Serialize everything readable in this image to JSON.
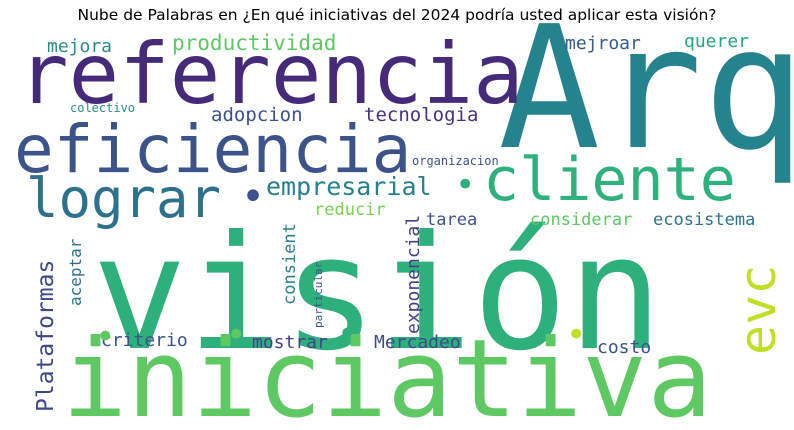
{
  "chart_data": {
    "type": "wordcloud",
    "title": "Nube de Palabras en ¿En qué iniciativas del 2024 podría usted aplicar esta visión?",
    "words": [
      {
        "text": "visión",
        "color": "#2eb07c",
        "orientation": "horizontal"
      },
      {
        "text": "Arq",
        "color": "#25838e",
        "orientation": "horizontal"
      },
      {
        "text": "iniciativa",
        "color": "#5ec962",
        "orientation": "horizontal"
      },
      {
        "text": "referencia",
        "color": "#462a7a",
        "orientation": "horizontal"
      },
      {
        "text": "eficiencia",
        "color": "#3b528b",
        "orientation": "horizontal"
      },
      {
        "text": "cliente",
        "color": "#2db27d",
        "orientation": "horizontal"
      },
      {
        "text": "lograr",
        "color": "#2c728e",
        "orientation": "horizontal"
      },
      {
        "text": "evc",
        "color": "#c0df25",
        "orientation": "vertical"
      },
      {
        "text": "empresarial",
        "color": "#27808e",
        "orientation": "horizontal"
      },
      {
        "text": "Plataformas",
        "color": "#3f4788",
        "orientation": "vertical"
      },
      {
        "text": "productividad",
        "color": "#5ec962",
        "orientation": "horizontal"
      },
      {
        "text": "tecnologia",
        "color": "#46337f",
        "orientation": "horizontal"
      },
      {
        "text": "adopcion",
        "color": "#3b528b",
        "orientation": "horizontal"
      },
      {
        "text": "mejora",
        "color": "#2c8c8c",
        "orientation": "horizontal"
      },
      {
        "text": "mejroar",
        "color": "#365c8d",
        "orientation": "horizontal"
      },
      {
        "text": "querer",
        "color": "#22a884",
        "orientation": "horizontal"
      },
      {
        "text": "reducir",
        "color": "#7ad151",
        "orientation": "horizontal"
      },
      {
        "text": "tarea",
        "color": "#3b528b",
        "orientation": "horizontal"
      },
      {
        "text": "considerar",
        "color": "#5ec962",
        "orientation": "horizontal"
      },
      {
        "text": "ecosistema",
        "color": "#2c728e",
        "orientation": "horizontal"
      },
      {
        "text": "exponencial",
        "color": "#433e85",
        "orientation": "vertical"
      },
      {
        "text": "consient",
        "color": "#27808e",
        "orientation": "vertical"
      },
      {
        "text": "aceptar",
        "color": "#2c728e",
        "orientation": "vertical"
      },
      {
        "text": "criterio",
        "color": "#3b528b",
        "orientation": "horizontal"
      },
      {
        "text": "mostrar",
        "color": "#414487",
        "orientation": "horizontal"
      },
      {
        "text": "Mercadeo",
        "color": "#3e4a89",
        "orientation": "horizontal"
      },
      {
        "text": "costo",
        "color": "#3b528b",
        "orientation": "horizontal"
      },
      {
        "text": "particular",
        "color": "#3b528b",
        "orientation": "vertical"
      },
      {
        "text": "colectivo",
        "color": "#2c8c8c",
        "orientation": "horizontal"
      },
      {
        "text": "organizacion",
        "color": "#3b528b",
        "orientation": "horizontal"
      },
      {
        "text": "•",
        "color": "#5ec962",
        "orientation": "horizontal"
      },
      {
        "text": "•",
        "color": "#5ec962",
        "orientation": "horizontal"
      },
      {
        "text": "•",
        "color": "#2eb07c",
        "orientation": "horizontal"
      },
      {
        "text": "•",
        "color": "#c0df25",
        "orientation": "horizontal"
      },
      {
        "text": "•",
        "color": "#2eb07c",
        "orientation": "horizontal"
      },
      {
        "text": "•",
        "color": "#3b528b",
        "orientation": "horizontal"
      }
    ]
  }
}
